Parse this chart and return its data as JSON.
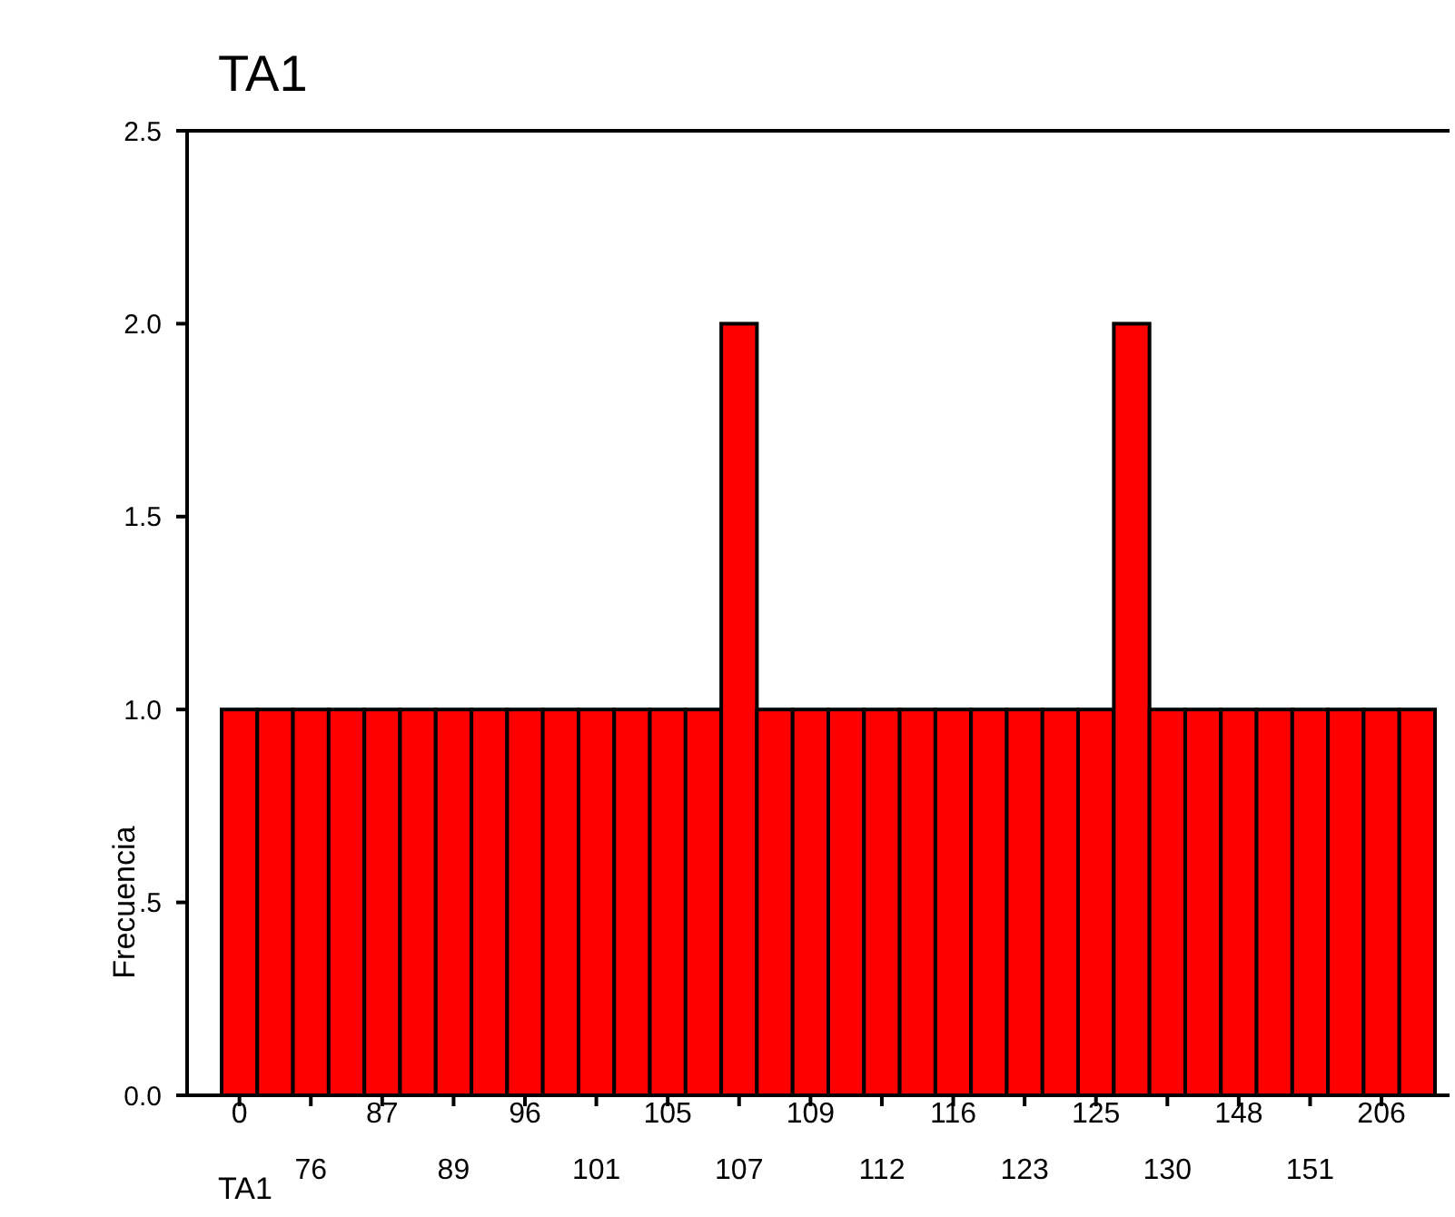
{
  "chart_data": {
    "type": "bar",
    "title": "TA1",
    "xlabel": "TA1",
    "ylabel": "Frecuencia",
    "categories": [
      "0",
      null,
      "76",
      null,
      "87",
      null,
      "89",
      null,
      "96",
      null,
      "101",
      null,
      "105",
      null,
      "107",
      null,
      "109",
      null,
      "112",
      null,
      "116",
      null,
      "123",
      null,
      "125",
      null,
      "130",
      null,
      "148",
      null,
      "151",
      null,
      "206",
      null
    ],
    "values": [
      1,
      1,
      1,
      1,
      1,
      1,
      1,
      1,
      1,
      1,
      1,
      1,
      1,
      1,
      2,
      1,
      1,
      1,
      1,
      1,
      1,
      1,
      1,
      1,
      1,
      2,
      1,
      1,
      1,
      1,
      1,
      1,
      1,
      1
    ],
    "color": "#ff0000",
    "ylim": [
      0,
      2.5
    ],
    "yticks": [
      {
        "value": 0,
        "label": "0.0"
      },
      {
        "value": 0.5,
        "label": ".5"
      },
      {
        "value": 1,
        "label": "1.0"
      },
      {
        "value": 1.5,
        "label": "1.5"
      },
      {
        "value": 2,
        "label": "2.0"
      },
      {
        "value": 2.5,
        "label": "2.5"
      }
    ],
    "grid": false
  }
}
